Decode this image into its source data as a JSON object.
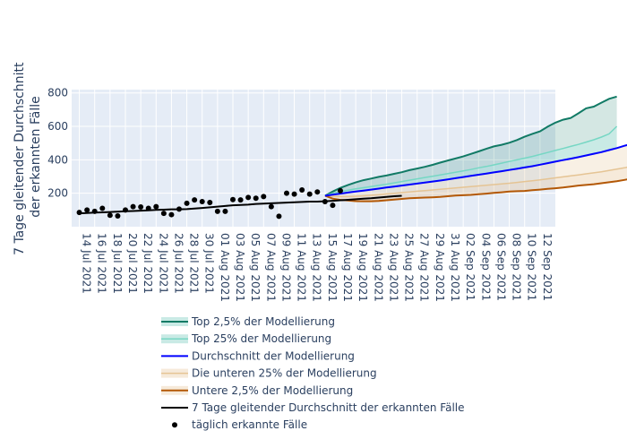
{
  "chart_data": {
    "type": "line",
    "ylabel": [
      "7 Tage gleitender Durchschnitt",
      "der erkannten Fälle"
    ],
    "ylim": [
      0,
      820
    ],
    "yticks": [
      200,
      400,
      600,
      800
    ],
    "x_ticks": [
      "14 Jul 2021",
      "16 Jul 2021",
      "18 Jul 2021",
      "20 Jul 2021",
      "22 Jul 2021",
      "24 Jul 2021",
      "26 Jul 2021",
      "28 Jul 2021",
      "30 Jul 2021",
      "01 Aug 2021",
      "03 Aug 2021",
      "05 Aug 2021",
      "07 Aug 2021",
      "09 Aug 2021",
      "11 Aug 2021",
      "13 Aug 2021",
      "15 Aug 2021",
      "17 Aug 2021",
      "19 Aug 2021",
      "21 Aug 2021",
      "23 Aug 2021",
      "25 Aug 2021",
      "27 Aug 2021",
      "29 Aug 2021",
      "31 Aug 2021",
      "02 Sep 2021",
      "04 Sep 2021",
      "06 Sep 2021",
      "08 Sep 2021",
      "10 Sep 2021",
      "12 Sep 2021"
    ],
    "grid": true,
    "legend_position": "bottom",
    "colors": {
      "top25": "#117a65",
      "top25_fill": "rgba(100,195,180,0.35)",
      "top75": "#76d7c4",
      "mean": "#0000ff",
      "low75": "#e5c494",
      "low75_fill": "rgba(229,196,148,0.35)",
      "low25": "#b35806",
      "avg": "#000000",
      "daily": "#000000",
      "plot_bg": "#e5ecf6"
    },
    "series": [
      {
        "key": "top25",
        "name": "Top 2,5% der Modellierung",
        "start": "2021-08-15",
        "values": [
          185,
          210,
          232,
          250,
          265,
          278,
          288,
          298,
          306,
          316,
          326,
          338,
          348,
          358,
          370,
          383,
          396,
          408,
          420,
          435,
          450,
          466,
          480,
          490,
          502,
          518,
          538,
          555,
          570,
          598,
          622,
          640,
          650,
          678,
          708,
          718,
          742,
          765,
          778
        ]
      },
      {
        "key": "top75",
        "name": "Top 25% der Modellierung",
        "start": "2021-08-15",
        "values": [
          185,
          200,
          210,
          218,
          226,
          233,
          240,
          247,
          254,
          262,
          270,
          278,
          286,
          294,
          302,
          310,
          318,
          326,
          334,
          342,
          352,
          360,
          370,
          380,
          390,
          400,
          410,
          420,
          432,
          444,
          456,
          468,
          480,
          492,
          506,
          520,
          536,
          555,
          600
        ]
      },
      {
        "key": "mean",
        "name": "Durchschnitt der Modellierung",
        "start": "2021-08-15",
        "values": [
          185,
          192,
          198,
          204,
          210,
          216,
          222,
          228,
          234,
          240,
          246,
          252,
          258,
          264,
          270,
          276,
          283,
          290,
          297,
          304,
          311,
          318,
          325,
          332,
          339,
          346,
          354,
          362,
          371,
          380,
          389,
          398,
          407,
          416,
          426,
          436,
          446,
          458,
          470,
          484,
          496
        ]
      },
      {
        "key": "low75",
        "name": "Die unteren 25% der Modellierung",
        "start": "2021-08-15",
        "values": [
          185,
          182,
          180,
          180,
          182,
          185,
          188,
          192,
          196,
          200,
          204,
          208,
          212,
          216,
          220,
          224,
          228,
          232,
          236,
          240,
          244,
          248,
          252,
          256,
          260,
          265,
          270,
          275,
          280,
          286,
          292,
          298,
          304,
          310,
          316,
          322,
          328,
          336,
          344,
          352,
          362,
          372,
          385
        ]
      },
      {
        "key": "low25",
        "name": "Untere 2,5% der Modellierung",
        "start": "2021-08-15",
        "values": [
          185,
          168,
          160,
          157,
          153,
          152,
          152,
          154,
          158,
          162,
          166,
          170,
          172,
          174,
          176,
          178,
          182,
          186,
          188,
          190,
          194,
          198,
          202,
          206,
          210,
          212,
          214,
          218,
          222,
          226,
          230,
          234,
          240,
          246,
          250,
          254,
          260,
          266,
          272,
          280,
          288,
          296,
          302
        ]
      },
      {
        "key": "avg",
        "name": "7 Tage gleitender Durchschnitt der erkannten Fälle",
        "start": "2021-07-14",
        "values": [
          80,
          82,
          84,
          86,
          88,
          90,
          92,
          94,
          96,
          98,
          100,
          102,
          104,
          104,
          105,
          108,
          112,
          116,
          120,
          124,
          128,
          130,
          132,
          136,
          138,
          140,
          142,
          144,
          146,
          148,
          150,
          150,
          152,
          155,
          158,
          161,
          164,
          167,
          170,
          174,
          178,
          182,
          185
        ]
      },
      {
        "key": "daily",
        "name": "täglich erkannte Fälle",
        "start": "2021-07-14",
        "values": [
          85,
          100,
          92,
          110,
          68,
          64,
          100,
          120,
          118,
          110,
          120,
          80,
          72,
          105,
          140,
          160,
          150,
          145,
          92,
          92,
          162,
          160,
          175,
          170,
          180,
          120,
          62,
          200,
          195,
          220,
          195,
          208,
          150,
          128,
          215
        ]
      }
    ]
  }
}
